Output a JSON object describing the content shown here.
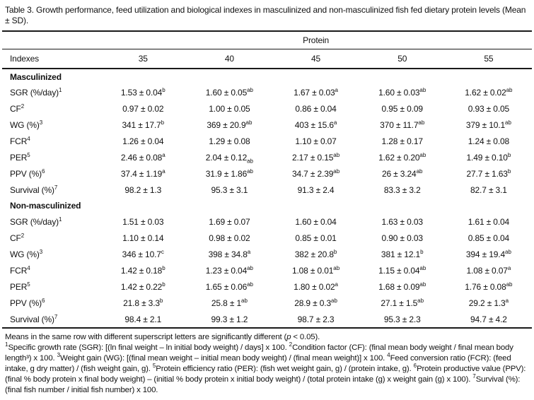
{
  "title": "Table 3. Growth performance, feed utilization and biological indexes in masculinized and non-masculinized fish fed dietary protein levels (Mean ± SD).",
  "table": {
    "span_header": "Protein",
    "columns": [
      "Indexes",
      "35",
      "40",
      "45",
      "50",
      "55"
    ],
    "sections": [
      {
        "label": "Masculinized",
        "rows": [
          {
            "label": {
              "t": "SGR (%/day)",
              "sup": "1"
            },
            "cells": [
              {
                "v": "1.53 ± 0.04",
                "sup": "b"
              },
              {
                "v": "1.60 ± 0.05",
                "sup": "ab"
              },
              {
                "v": "1.67 ± 0.03",
                "sup": "a"
              },
              {
                "v": "1.60 ± 0.03",
                "sup": "ab"
              },
              {
                "v": "1.62 ± 0.02",
                "sup": "ab"
              }
            ]
          },
          {
            "label": {
              "t": "CF",
              "sup": "2"
            },
            "cells": [
              {
                "v": "0.97 ± 0.02"
              },
              {
                "v": "1.00 ± 0.05"
              },
              {
                "v": "0.86 ± 0.04"
              },
              {
                "v": "0.95 ± 0.09"
              },
              {
                "v": "0.93 ± 0.05"
              }
            ]
          },
          {
            "label": {
              "t": "WG (%)",
              "sup": "3"
            },
            "cells": [
              {
                "v": "341 ± 17.7",
                "sup": "b"
              },
              {
                "v": "369 ± 20.9",
                "sup": "ab"
              },
              {
                "v": "403 ± 15.6",
                "sup": "a"
              },
              {
                "v": "370 ± 11.7",
                "sup": "ab"
              },
              {
                "v": "379 ± 10.1",
                "sup": "ab"
              }
            ]
          },
          {
            "label": {
              "t": "FCR",
              "sup": "4"
            },
            "cells": [
              {
                "v": "1.26 ± 0.04"
              },
              {
                "v": "1.29 ± 0.08"
              },
              {
                "v": "1.10 ± 0.07"
              },
              {
                "v": "1.28 ± 0.17"
              },
              {
                "v": "1.24 ± 0.08"
              }
            ]
          },
          {
            "label": {
              "t": "PER",
              "sup": "5"
            },
            "cells": [
              {
                "v": "2.46 ± 0.08",
                "sup": "a"
              },
              {
                "v": "2.04 ± 0.12",
                "sub": "ab"
              },
              {
                "v": "2.17 ± 0.15",
                "sup": "ab"
              },
              {
                "v": "1.62 ± 0.20",
                "sup": "ab"
              },
              {
                "v": "1.49 ± 0.10",
                "sup": "b"
              }
            ]
          },
          {
            "label": {
              "t": "PPV (%)",
              "sup": "6"
            },
            "cells": [
              {
                "v": "37.4 ± 1.19",
                "sup": "a"
              },
              {
                "v": "31.9 ± 1.86",
                "sup": "ab"
              },
              {
                "v": "34.7 ± 2.39",
                "sup": "ab"
              },
              {
                "v": "26 ± 3.24",
                "sup": "ab"
              },
              {
                "v": "27.7 ± 1.63",
                "sup": "b"
              }
            ]
          },
          {
            "label": {
              "t": "Survival (%)",
              "sup": "7"
            },
            "cells": [
              {
                "v": "98.2 ± 1.3"
              },
              {
                "v": "95.3 ± 3.1"
              },
              {
                "v": "91.3 ± 2.4"
              },
              {
                "v": "83.3 ± 3.2"
              },
              {
                "v": "82.7 ± 3.1"
              }
            ]
          }
        ]
      },
      {
        "label": "Non-masculinized",
        "rows": [
          {
            "label": {
              "t": "SGR (%/day)",
              "sup": "1"
            },
            "cells": [
              {
                "v": "1.51 ± 0.03"
              },
              {
                "v": "1.69 ± 0.07"
              },
              {
                "v": "1.60 ± 0.04"
              },
              {
                "v": "1.63 ± 0.03"
              },
              {
                "v": "1.61 ± 0.04"
              }
            ]
          },
          {
            "label": {
              "t": "CF",
              "sup": "2"
            },
            "cells": [
              {
                "v": "1.10 ± 0.14"
              },
              {
                "v": "0.98 ± 0.02"
              },
              {
                "v": "0.85 ± 0.01"
              },
              {
                "v": "0.90 ± 0.03"
              },
              {
                "v": "0.85 ± 0.04"
              }
            ]
          },
          {
            "label": {
              "t": "WG (%)",
              "sup": "3"
            },
            "cells": [
              {
                "v": "346 ± 10.7",
                "sup": "c"
              },
              {
                "v": "398 ± 34.8",
                "sup": "a"
              },
              {
                "v": "382 ± 20.8",
                "sup": "b"
              },
              {
                "v": "381 ± 12.1",
                "sup": "b"
              },
              {
                "v": "394 ± 19.4",
                "sup": "ab"
              }
            ]
          },
          {
            "label": {
              "t": "FCR",
              "sup": "4"
            },
            "cells": [
              {
                "v": "1.42 ± 0.18",
                "sup": "b"
              },
              {
                "v": "1.23 ± 0.04",
                "sup": "ab"
              },
              {
                "v": "1.08 ± 0.01",
                "sup": "ab"
              },
              {
                "v": "1.15 ± 0.04",
                "sup": "ab"
              },
              {
                "v": "1.08 ± 0.07",
                "sup": "a"
              }
            ]
          },
          {
            "label": {
              "t": "PER",
              "sup": "5"
            },
            "cells": [
              {
                "v": "1.42 ± 0.22",
                "sup": "b"
              },
              {
                "v": "1.65 ± 0.06",
                "sup": "ab"
              },
              {
                "v": "1.80 ± 0.02",
                "sup": "a"
              },
              {
                "v": "1.68 ± 0.09",
                "sup": "ab"
              },
              {
                "v": "1.76 ± 0.08",
                "sup": "ab"
              }
            ]
          },
          {
            "label": {
              "t": "PPV (%)",
              "sup": "6"
            },
            "cells": [
              {
                "v": "21.8 ± 3.3",
                "sup": "b"
              },
              {
                "v": "25.8 ± 1",
                "sup": "ab"
              },
              {
                "v": "28.9 ± 0.3",
                "sup": "ab"
              },
              {
                "v": "27.1 ± 1.5",
                "sup": "ab"
              },
              {
                "v": "29.2 ± 1.3",
                "sup": "a"
              }
            ]
          },
          {
            "label": {
              "t": "Survival (%)",
              "sup": "7"
            },
            "cells": [
              {
                "v": "98.4 ± 2.1"
              },
              {
                "v": "99.3 ± 1.2"
              },
              {
                "v": "98.7 ± 2.3"
              },
              {
                "v": "95.3 ± 2.3"
              },
              {
                "v": "94.7 ± 4.2"
              }
            ]
          }
        ]
      }
    ]
  },
  "footnotes": {
    "significance_prefix": "Means in the same row with different superscript letters are significantly different (",
    "significance_p": "p",
    "significance_suffix": " < 0.05).",
    "definitions": [
      {
        "sup": "1",
        "text": "Specific growth rate (SGR): [(ln final weight – ln initial body weight) / days] x 100. "
      },
      {
        "sup": "2",
        "text": "Condition factor (CF): (final mean body weight / final mean body length³) x 100. "
      },
      {
        "sup": "3",
        "text": "Weight gain (WG): [(final mean weight – initial mean body weight) / (final mean weight)] x 100. "
      },
      {
        "sup": "4",
        "text": "Feed conversion ratio (FCR): (feed intake, g dry matter) / (fish weight gain, g). "
      },
      {
        "sup": "5",
        "text": "Protein efficiency ratio (PER): (fish wet weight gain, g) / (protein intake, g). "
      },
      {
        "sup": "6",
        "text": "Protein productive value (PPV): (final % body protein x final body weight) – (initial % body protein x initial body weight) / (total protein intake (g) x weight gain (g) x 100). "
      },
      {
        "sup": "7",
        "text": "Survival (%): (final fish number / initial fish number) x 100."
      }
    ]
  }
}
